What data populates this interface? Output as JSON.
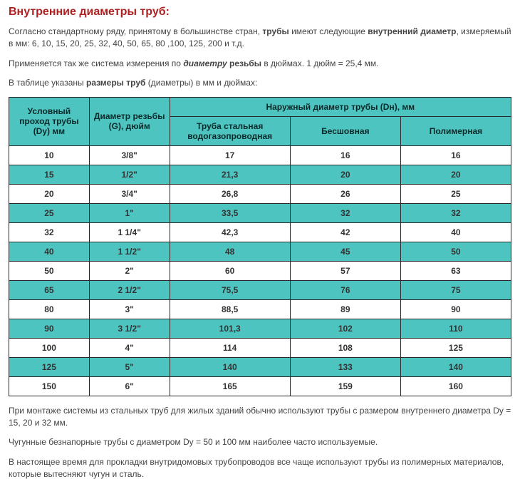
{
  "title": "Внутренние диаметры труб:",
  "para1_a": "Согласно стандартному ряду, принятому в большинстве стран, ",
  "para1_b": "трубы",
  "para1_c": " имеют следующие ",
  "para1_d": "внутренний диаметр",
  "para1_e": ", измеряемый в мм: 6, 10, 15, 20, 25, 32, 40, 50, 65, 80 ,100, 125, 200 и т.д.",
  "para2_a": "Применяется так же система измерения по ",
  "para2_b": "диаметру",
  "para2_c": " резьбы",
  "para2_d": " в дюймах. 1 дюйм = 25,4 мм.",
  "para3_a": "В таблице указаны ",
  "para3_b": "размеры труб",
  "para3_c": " (диаметры) в мм и дюймах:",
  "table": {
    "head": {
      "col1": "Условный проход трубы (Dy) мм",
      "col2": "Диаметр резьбы (G), дюйм",
      "colspan": "Наружный диаметр трубы (Dн), мм",
      "sub1": "Труба стальная водогазопроводная",
      "sub2": "Бесшовная",
      "sub3": "Полимерная"
    },
    "rows": [
      {
        "c": "rwhite",
        "v": [
          "10",
          "3/8\"",
          "17",
          "16",
          "16"
        ]
      },
      {
        "c": "rteal",
        "v": [
          "15",
          "1/2\"",
          "21,3",
          "20",
          "20"
        ]
      },
      {
        "c": "rwhite",
        "v": [
          "20",
          "3/4\"",
          "26,8",
          "26",
          "25"
        ]
      },
      {
        "c": "rteal",
        "v": [
          "25",
          "1\"",
          "33,5",
          "32",
          "32"
        ]
      },
      {
        "c": "rwhite",
        "v": [
          "32",
          "1 1/4\"",
          "42,3",
          "42",
          "40"
        ]
      },
      {
        "c": "rteal",
        "v": [
          "40",
          "1 1/2\"",
          "48",
          "45",
          "50"
        ]
      },
      {
        "c": "rwhite",
        "v": [
          "50",
          "2\"",
          "60",
          "57",
          "63"
        ]
      },
      {
        "c": "rteal",
        "v": [
          "65",
          "2 1/2\"",
          "75,5",
          "76",
          "75"
        ]
      },
      {
        "c": "rwhite",
        "v": [
          "80",
          "3\"",
          "88,5",
          "89",
          "90"
        ]
      },
      {
        "c": "rteal",
        "v": [
          "90",
          "3 1/2\"",
          "101,3",
          "102",
          "110"
        ]
      },
      {
        "c": "rwhite",
        "v": [
          "100",
          "4\"",
          "114",
          "108",
          "125"
        ]
      },
      {
        "c": "rteal",
        "v": [
          "125",
          "5\"",
          "140",
          "133",
          "140"
        ]
      },
      {
        "c": "rwhite",
        "v": [
          "150",
          "6\"",
          "165",
          "159",
          "160"
        ]
      }
    ],
    "colwidths": [
      "16%",
      "16%",
      "24%",
      "22%",
      "22%"
    ]
  },
  "para4": "При монтаже системы из стальных труб для жилых зданий обычно используют трубы с размером внутреннего диаметра Dy = 15, 20 и 32 мм.",
  "para5": "Чугунные безнапорные трубы с диаметром Dy = 50 и 100 мм наиболее часто используемые.",
  "para6": "В настоящее время для прокладки внутридомовых трубопроводов все чаще используют трубы из полимерных материалов, которые вытесняют чугун и сталь."
}
